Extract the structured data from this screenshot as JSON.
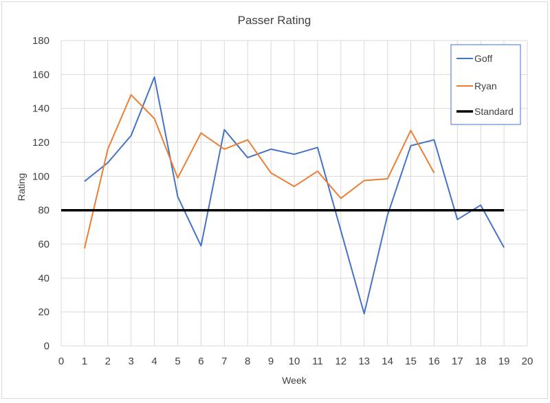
{
  "chart_data": {
    "type": "line",
    "title": "Passer Rating",
    "xlabel": "Week",
    "ylabel": "Rating",
    "xlim": [
      0,
      20
    ],
    "ylim": [
      0,
      180
    ],
    "x_ticks": [
      0,
      1,
      2,
      3,
      4,
      5,
      6,
      7,
      8,
      9,
      10,
      11,
      12,
      13,
      14,
      15,
      16,
      17,
      18,
      19,
      20
    ],
    "y_ticks": [
      0,
      20,
      40,
      60,
      80,
      100,
      120,
      140,
      160,
      180
    ],
    "grid": true,
    "legend_position": "top-right",
    "series": [
      {
        "name": "Goff",
        "color": "#4472c4",
        "x": [
          1,
          2,
          3,
          4,
          5,
          6,
          7,
          8,
          9,
          10,
          11,
          12,
          13,
          14,
          15,
          16,
          17,
          18,
          19
        ],
        "values": [
          97,
          108,
          124,
          158.5,
          88,
          59,
          127.5,
          111,
          116,
          113,
          117,
          68,
          19,
          77,
          118,
          121.5,
          74.5,
          83,
          58
        ]
      },
      {
        "name": "Ryan",
        "color": "#ed7d31",
        "x": [
          1,
          2,
          3,
          4,
          5,
          6,
          7,
          8,
          9,
          10,
          11,
          12,
          13,
          14,
          15,
          16
        ],
        "values": [
          57.5,
          116,
          148,
          134,
          99,
          125.5,
          116,
          121.5,
          102,
          94,
          103,
          87,
          97.5,
          98.5,
          127,
          102
        ]
      },
      {
        "name": "Standard",
        "color": "#000000",
        "x": [
          0,
          19
        ],
        "values": [
          80,
          80
        ]
      }
    ]
  }
}
